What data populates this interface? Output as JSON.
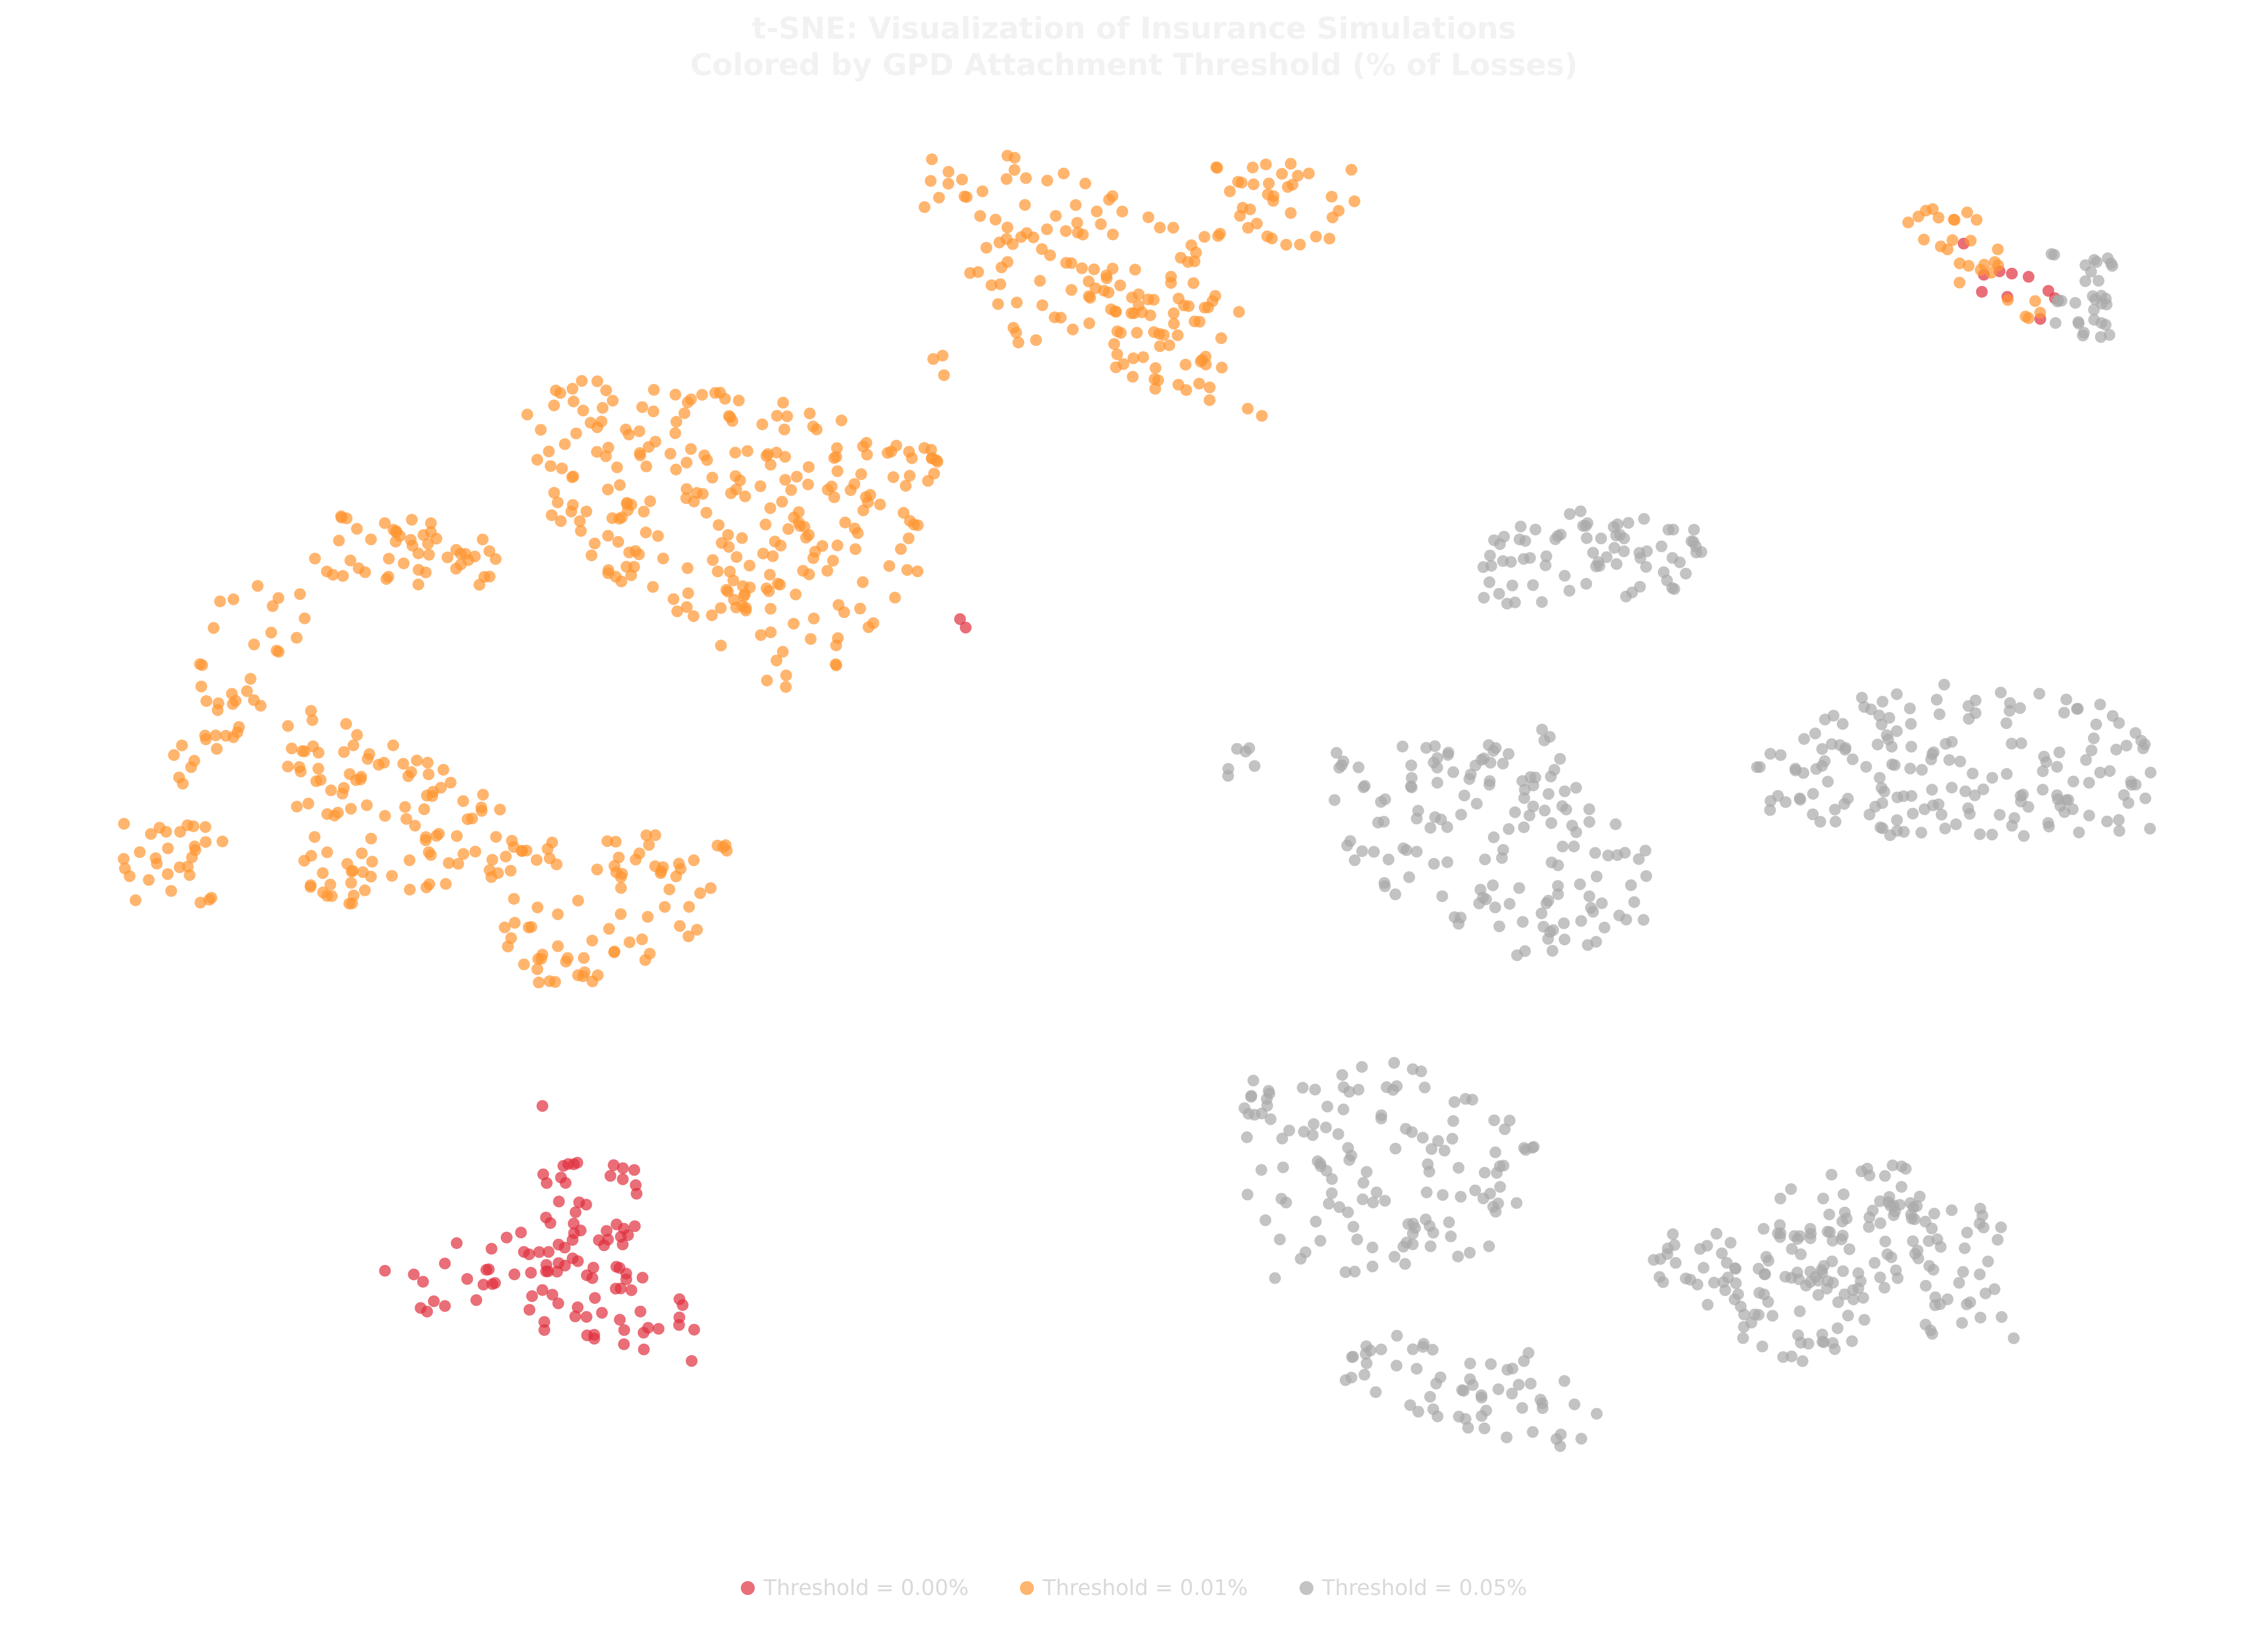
{
  "colors": {
    "threshold_0_00": "#e0303e",
    "threshold_0_01": "#ff9630",
    "threshold_0_05": "#a9a9a9"
  },
  "chart_data": {
    "type": "scatter",
    "title": "t-SNE: Visualization of Insurance Simulations",
    "subtitle": "Colored by GPD Attachment Threshold (% of Losses)",
    "xlabel": "",
    "ylabel": "",
    "grid": false,
    "axes_visible": false,
    "legend_placement": "bottom-center",
    "series": [
      {
        "name": "Threshold = 0.00%",
        "color": "#e0303e",
        "clusters": [
          {
            "polygon": [
              [
                710,
                2330
              ],
              [
                1160,
                2280
              ],
              [
                1380,
                2560
              ],
              [
                720,
                2440
              ]
            ],
            "n": 70
          },
          {
            "polygon": [
              [
                1000,
                2160
              ],
              [
                1200,
                2180
              ],
              [
                1180,
                2400
              ],
              [
                980,
                2380
              ]
            ],
            "n": 40
          },
          {
            "polygon": [
              [
                3570,
                400
              ],
              [
                3850,
                540
              ],
              [
                3840,
                650
              ],
              [
                3560,
                500
              ]
            ],
            "n": 10
          },
          {
            "polygon": [
              [
                1000,
                2040
              ],
              [
                1030,
                2040
              ],
              [
                1030,
                2070
              ],
              [
                1000,
                2070
              ]
            ],
            "n": 1
          },
          {
            "polygon": [
              [
                1750,
                1150
              ],
              [
                1810,
                1150
              ],
              [
                1810,
                1180
              ],
              [
                1750,
                1180
              ]
            ],
            "n": 2
          }
        ]
      },
      {
        "name": "Threshold = 0.01%",
        "color": "#ff9630",
        "clusters": [
          {
            "polygon": [
              [
                1730,
                270
              ],
              [
                1900,
                290
              ],
              [
                2280,
                420
              ],
              [
                2260,
                620
              ],
              [
                1900,
                640
              ],
              [
                1720,
                380
              ]
            ],
            "n": 110
          },
          {
            "polygon": [
              [
                2080,
                500
              ],
              [
                2300,
                520
              ],
              [
                2360,
                780
              ],
              [
                2080,
                740
              ]
            ],
            "n": 40
          },
          {
            "polygon": [
              [
                2260,
                300
              ],
              [
                2560,
                310
              ],
              [
                2480,
                510
              ],
              [
                2260,
                400
              ]
            ],
            "n": 35
          },
          {
            "polygon": [
              [
                3520,
                390
              ],
              [
                3680,
                390
              ],
              [
                3840,
                620
              ],
              [
                3760,
                640
              ]
            ],
            "n": 28
          },
          {
            "polygon": [
              [
                1700,
                660
              ],
              [
                1780,
                660
              ],
              [
                1770,
                720
              ],
              [
                1690,
                710
              ]
            ],
            "n": 3
          },
          {
            "polygon": [
              [
                980,
                700
              ],
              [
                1400,
                720
              ],
              [
                1760,
                840
              ],
              [
                1730,
                1060
              ],
              [
                1500,
                1320
              ],
              [
                1100,
                1050
              ],
              [
                980,
                900
              ]
            ],
            "n": 260
          },
          {
            "polygon": [
              [
                640,
                950
              ],
              [
                960,
                1000
              ],
              [
                900,
                1100
              ],
              [
                560,
                1080
              ]
            ],
            "n": 50
          },
          {
            "polygon": [
              [
                420,
                1080
              ],
              [
                600,
                1100
              ],
              [
                420,
                1460
              ],
              [
                300,
                1480
              ]
            ],
            "n": 40
          },
          {
            "polygon": [
              [
                210,
                1530
              ],
              [
                420,
                1540
              ],
              [
                400,
                1690
              ],
              [
                240,
                1680
              ]
            ],
            "n": 30
          },
          {
            "polygon": [
              [
                500,
                1300
              ],
              [
                760,
                1380
              ],
              [
                1000,
                1520
              ],
              [
                960,
                1640
              ],
              [
                580,
                1700
              ],
              [
                540,
                1500
              ]
            ],
            "n": 110
          },
          {
            "polygon": [
              [
                940,
                1580
              ],
              [
                1380,
                1540
              ],
              [
                1380,
                1720
              ],
              [
                1000,
                1880
              ],
              [
                940,
                1800
              ]
            ],
            "n": 80
          }
        ]
      },
      {
        "name": "Threshold = 0.05%",
        "color": "#a9a9a9",
        "clusters": [
          {
            "polygon": [
              [
                3820,
                450
              ],
              [
                3960,
                480
              ],
              [
                3940,
                630
              ],
              [
                3840,
                640
              ]
            ],
            "n": 32
          },
          {
            "polygon": [
              [
                2760,
                1000
              ],
              [
                3000,
                940
              ],
              [
                3220,
                1000
              ],
              [
                3140,
                1110
              ],
              [
                2760,
                1140
              ]
            ],
            "n": 75
          },
          {
            "polygon": [
              [
                2270,
                1390
              ],
              [
                2360,
                1390
              ],
              [
                2350,
                1450
              ],
              [
                2270,
                1450
              ]
            ],
            "n": 6
          },
          {
            "polygon": [
              [
                2440,
                1400
              ],
              [
                2880,
                1360
              ],
              [
                3100,
                1620
              ],
              [
                3080,
                1730
              ],
              [
                2860,
                1800
              ],
              [
                2540,
                1640
              ]
            ],
            "n": 150
          },
          {
            "polygon": [
              [
                3270,
                1430
              ],
              [
                3500,
                1260
              ],
              [
                3960,
                1300
              ],
              [
                4030,
                1430
              ],
              [
                4020,
                1560
              ],
              [
                3540,
                1570
              ],
              [
                3300,
                1520
              ]
            ],
            "n": 170
          },
          {
            "polygon": [
              [
                2320,
                2020
              ],
              [
                2620,
                1970
              ],
              [
                2880,
                2130
              ],
              [
                2820,
                2340
              ],
              [
                2360,
                2400
              ],
              [
                2320,
                2200
              ]
            ],
            "n": 130
          },
          {
            "polygon": [
              [
                2480,
                2490
              ],
              [
                2820,
                2500
              ],
              [
                2990,
                2620
              ],
              [
                2950,
                2730
              ],
              [
                2480,
                2590
              ]
            ],
            "n": 60
          },
          {
            "polygon": [
              [
                3060,
                2300
              ],
              [
                3240,
                2300
              ],
              [
                3300,
                2470
              ],
              [
                3060,
                2420
              ]
            ],
            "n": 22
          },
          {
            "polygon": [
              [
                3200,
                2320
              ],
              [
                3540,
                2180
              ],
              [
                3540,
                2450
              ],
              [
                3380,
                2580
              ],
              [
                3200,
                2470
              ]
            ],
            "n": 80
          },
          {
            "polygon": [
              [
                3300,
                2200
              ],
              [
                3560,
                2170
              ],
              [
                3600,
                2420
              ],
              [
                3330,
                2450
              ]
            ],
            "n": 45
          },
          {
            "polygon": [
              [
                3560,
                2220
              ],
              [
                3740,
                2230
              ],
              [
                3760,
                2500
              ],
              [
                3560,
                2490
              ]
            ],
            "n": 45
          }
        ]
      }
    ]
  },
  "legend": {
    "items": [
      {
        "label": "Threshold = 0.00%",
        "color": "#e0303e"
      },
      {
        "label": "Threshold = 0.01%",
        "color": "#ff9630"
      },
      {
        "label": "Threshold = 0.05%",
        "color": "#a9a9a9"
      }
    ]
  }
}
